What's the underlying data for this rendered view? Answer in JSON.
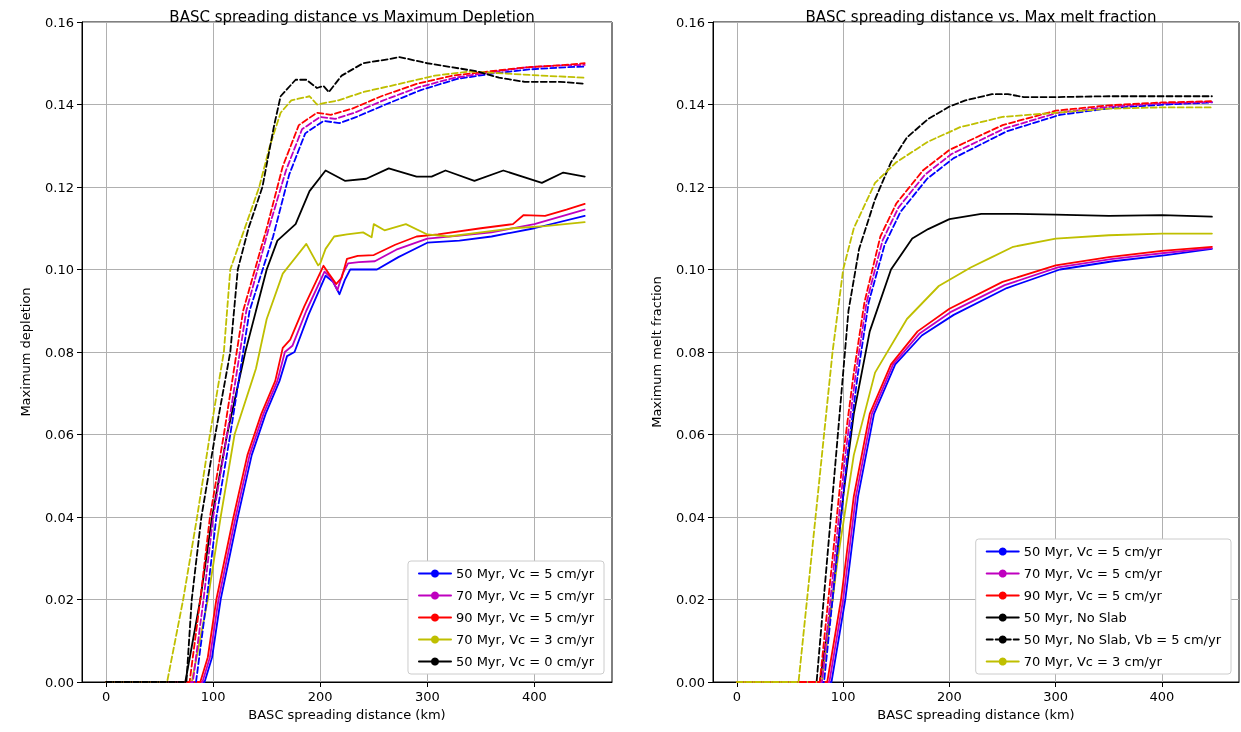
{
  "chart_data": [
    {
      "type": "line",
      "title": "BASC spreading distance vs Maximum Depletion",
      "xlabel": "BASC spreading distance (km)",
      "ylabel": "Maximum depletion",
      "xlim": [
        -22.5,
        472.5
      ],
      "xticks": [
        0,
        100,
        200,
        300,
        400
      ],
      "ylim": [
        0,
        0.16
      ],
      "yticks": [
        {
          "value": 0,
          "label": "0.00"
        },
        {
          "value": 0.02,
          "label": "0.02"
        },
        {
          "value": 0.04,
          "label": "0.04"
        },
        {
          "value": 0.06,
          "label": "0.06"
        },
        {
          "value": 0.08,
          "label": "0.08"
        },
        {
          "value": 0.1,
          "label": "0.10"
        },
        {
          "value": 0.12,
          "label": "0.12"
        },
        {
          "value": 0.14,
          "label": "0.14"
        },
        {
          "value": 0.16,
          "label": "0.16"
        }
      ],
      "grid": true,
      "legend": "bottom right",
      "marker": "none",
      "series": [
        {
          "name": "50 Myr, Vc = 5 cm/yr",
          "color": "#0000ff",
          "line_style": "solid",
          "x": [
            0,
            92,
            99,
            107,
            123,
            136,
            149,
            162,
            169,
            176,
            189,
            205,
            212,
            218,
            223,
            228,
            238,
            253,
            273,
            300,
            330,
            360,
            400,
            447
          ],
          "values": [
            0,
            0,
            0.006,
            0.02,
            0.04,
            0.055,
            0.065,
            0.073,
            0.079,
            0.08,
            0.089,
            0.0985,
            0.097,
            0.094,
            0.0975,
            0.1,
            0.1,
            0.1,
            0.103,
            0.1065,
            0.107,
            0.108,
            0.11,
            0.113
          ]
        },
        {
          "name": "70 Myr, Vc = 5 cm/yr",
          "color": "#bf00bf",
          "line_style": "solid",
          "x": [
            0,
            90,
            97,
            105,
            121,
            134,
            147,
            160,
            167,
            174,
            187,
            204,
            210,
            216,
            221,
            226,
            236,
            251,
            271,
            300,
            330,
            360,
            400,
            447
          ],
          "values": [
            0,
            0,
            0.006,
            0.02,
            0.04,
            0.055,
            0.065,
            0.073,
            0.08,
            0.0815,
            0.09,
            0.0995,
            0.098,
            0.095,
            0.099,
            0.1015,
            0.1018,
            0.102,
            0.1048,
            0.1075,
            0.1082,
            0.109,
            0.111,
            0.1145
          ]
        },
        {
          "name": "90 Myr, Vc = 5 cm/yr",
          "color": "#ff0000",
          "line_style": "solid",
          "x": [
            0,
            88,
            95,
            103,
            119,
            132,
            145,
            158,
            165,
            172,
            185,
            203,
            208,
            215,
            220,
            225,
            235,
            250,
            270,
            290,
            310,
            350,
            380,
            390,
            410,
            430,
            447
          ],
          "values": [
            0,
            0,
            0.006,
            0.02,
            0.04,
            0.055,
            0.065,
            0.073,
            0.081,
            0.083,
            0.091,
            0.1009,
            0.099,
            0.0965,
            0.098,
            0.1026,
            0.1033,
            0.1035,
            0.106,
            0.108,
            0.1085,
            0.11,
            0.111,
            0.1132,
            0.113,
            0.1145,
            0.1159
          ]
        },
        {
          "name": "70 Myr, Vc = 3 cm/yr",
          "color": "#bfbf00",
          "line_style": "solid",
          "x": [
            0,
            80,
            95,
            107,
            120,
            140,
            150,
            165,
            187,
            198,
            200,
            205,
            213,
            225,
            240,
            248,
            250,
            260,
            280,
            300,
            320,
            350,
            380,
            410,
            447
          ],
          "values": [
            0,
            0,
            0.02,
            0.04,
            0.06,
            0.076,
            0.088,
            0.099,
            0.1062,
            0.101,
            0.1015,
            0.105,
            0.108,
            0.1085,
            0.109,
            0.1078,
            0.111,
            0.1095,
            0.111,
            0.1085,
            0.108,
            0.109,
            0.11,
            0.1105,
            0.1115
          ]
        },
        {
          "name": "50 Myr, Vc = 0 cm/yr",
          "color": "#000000",
          "line_style": "solid",
          "x": [
            0,
            74,
            88,
            99,
            113,
            130,
            150,
            160,
            177,
            190,
            205,
            223,
            243,
            264,
            290,
            304,
            317,
            344,
            371,
            407,
            427,
            447
          ],
          "values": [
            0,
            0,
            0.02,
            0.04,
            0.06,
            0.08,
            0.1,
            0.107,
            0.111,
            0.119,
            0.124,
            0.1215,
            0.122,
            0.1245,
            0.1225,
            0.1225,
            0.124,
            0.1215,
            0.124,
            0.121,
            0.1235,
            0.1225
          ]
        },
        {
          "color": "#0000ff",
          "line_style": "dashed",
          "x": [
            0,
            84,
            94,
            103,
            116,
            128,
            134,
            156,
            171,
            186,
            203,
            218,
            234,
            261,
            294,
            328,
            361,
            395,
            428,
            447
          ],
          "values": [
            0,
            0,
            0.02,
            0.04,
            0.06,
            0.08,
            0.09,
            0.108,
            0.123,
            0.133,
            0.136,
            0.1355,
            0.137,
            0.14,
            0.1435,
            0.1462,
            0.1475,
            0.1485,
            0.149,
            0.1492
          ]
        },
        {
          "color": "#bf00bf",
          "line_style": "dashed",
          "x": [
            0,
            81,
            91,
            100,
            113,
            125,
            131,
            152,
            168,
            183,
            200,
            214,
            232,
            259,
            292,
            326,
            359,
            393,
            426,
            447
          ],
          "values": [
            0,
            0,
            0.02,
            0.04,
            0.06,
            0.08,
            0.09,
            0.11,
            0.124,
            0.134,
            0.137,
            0.1365,
            0.138,
            0.141,
            0.1442,
            0.1465,
            0.1478,
            0.149,
            0.1495,
            0.1496
          ]
        },
        {
          "color": "#ff0000",
          "line_style": "dashed",
          "x": [
            0,
            78,
            88,
            97,
            110,
            122,
            128,
            150,
            165,
            180,
            197,
            210,
            230,
            257,
            290,
            324,
            357,
            391,
            424,
            447
          ],
          "values": [
            0,
            0,
            0.02,
            0.04,
            0.06,
            0.08,
            0.09,
            0.11,
            0.125,
            0.135,
            0.138,
            0.1375,
            0.139,
            0.142,
            0.145,
            0.147,
            0.148,
            0.149,
            0.1495,
            0.15
          ]
        },
        {
          "color": "#bfbf00",
          "line_style": "dashed",
          "x": [
            0,
            57,
            72,
            85,
            97,
            110,
            116,
            143,
            153,
            163,
            173,
            190,
            197,
            217,
            240,
            274,
            307,
            340,
            374,
            407,
            447
          ],
          "values": [
            0,
            0,
            0.02,
            0.04,
            0.06,
            0.08,
            0.1,
            0.12,
            0.13,
            0.138,
            0.141,
            0.142,
            0.14,
            0.141,
            0.143,
            0.145,
            0.147,
            0.148,
            0.1475,
            0.147,
            0.1465
          ]
        },
        {
          "color": "#000000",
          "line_style": "dashed",
          "x": [
            0,
            75,
            80,
            89,
            102,
            116,
            123,
            133,
            146,
            157,
            163,
            177,
            187,
            197,
            203,
            208,
            220,
            240,
            264,
            274,
            300,
            324,
            347,
            367,
            391,
            424,
            447
          ],
          "values": [
            0,
            0,
            0.02,
            0.04,
            0.06,
            0.08,
            0.1,
            0.11,
            0.12,
            0.135,
            0.142,
            0.146,
            0.146,
            0.144,
            0.1445,
            0.143,
            0.147,
            0.15,
            0.151,
            0.1515,
            0.15,
            0.149,
            0.148,
            0.1465,
            0.1455,
            0.1455,
            0.145
          ]
        }
      ]
    },
    {
      "type": "line",
      "title": "BASC spreading distance vs. Max melt fraction",
      "xlabel": "BASC spreading distance (km)",
      "ylabel": "Maximum melt fraction",
      "xlim": [
        -22.5,
        472.5
      ],
      "xticks": [
        0,
        100,
        200,
        300,
        400
      ],
      "ylim": [
        0,
        0.16
      ],
      "yticks": [
        {
          "value": 0,
          "label": "0.00"
        },
        {
          "value": 0.02,
          "label": "0.02"
        },
        {
          "value": 0.04,
          "label": "0.04"
        },
        {
          "value": 0.06,
          "label": "0.06"
        },
        {
          "value": 0.08,
          "label": "0.08"
        },
        {
          "value": 0.1,
          "label": "0.10"
        },
        {
          "value": 0.12,
          "label": "0.12"
        },
        {
          "value": 0.14,
          "label": "0.14"
        },
        {
          "value": 0.16,
          "label": "0.16"
        }
      ],
      "grid": true,
      "legend": "bottom right",
      "marker": "none",
      "series": [
        {
          "name": "50 Myr, Vc = 5 cm/yr",
          "color": "#0000ff",
          "line_style": "solid",
          "x": [
            0,
            89,
            102,
            114,
            129,
            149,
            174,
            204,
            254,
            304,
            354,
            404,
            447
          ],
          "values": [
            0,
            0,
            0.02,
            0.045,
            0.065,
            0.077,
            0.084,
            0.089,
            0.0955,
            0.1,
            0.102,
            0.1035,
            0.105
          ]
        },
        {
          "name": "70 Myr, Vc = 5 cm/yr",
          "color": "#bf00bf",
          "line_style": "solid",
          "x": [
            0,
            87,
            100,
            112,
            127,
            147,
            172,
            202,
            252,
            302,
            352,
            402,
            447
          ],
          "values": [
            0,
            0,
            0.02,
            0.045,
            0.065,
            0.077,
            0.0845,
            0.0898,
            0.0962,
            0.1005,
            0.1025,
            0.104,
            0.1052
          ]
        },
        {
          "name": "90 Myr, Vc = 5 cm/yr",
          "color": "#ff0000",
          "line_style": "solid",
          "x": [
            0,
            85,
            98,
            110,
            125,
            145,
            170,
            200,
            250,
            300,
            350,
            400,
            447
          ],
          "values": [
            0,
            0,
            0.02,
            0.045,
            0.065,
            0.077,
            0.085,
            0.0905,
            0.097,
            0.101,
            0.103,
            0.1045,
            0.1055
          ]
        },
        {
          "name": "50 Myr, No Slab",
          "color": "#000000",
          "line_style": "solid",
          "x": [
            0,
            78,
            90,
            100,
            110,
            125,
            145,
            165,
            180,
            200,
            230,
            260,
            300,
            350,
            400,
            447
          ],
          "values": [
            0,
            0,
            0.02,
            0.045,
            0.065,
            0.085,
            0.1,
            0.1075,
            0.1098,
            0.1122,
            0.1135,
            0.1135,
            0.1133,
            0.113,
            0.1132,
            0.1128
          ]
        },
        {
          "name": "50 Myr, No Slab, Vb = 5 cm/yr",
          "color": "#000000",
          "line_style": "dashed",
          "x": [
            0,
            75,
            85,
            95,
            105,
            115,
            130,
            145,
            160,
            180,
            200,
            215,
            240,
            255,
            270,
            300,
            350,
            400,
            447
          ],
          "values": [
            0,
            0,
            0.03,
            0.06,
            0.09,
            0.105,
            0.117,
            0.126,
            0.132,
            0.1365,
            0.1395,
            0.141,
            0.1425,
            0.1425,
            0.1418,
            0.1418,
            0.142,
            0.142,
            0.142
          ]
        },
        {
          "name": "70 Myr, Vc = 3 cm/yr",
          "color": "#bfbf00",
          "line_style": "solid",
          "x": [
            0,
            80,
            95,
            110,
            130,
            160,
            190,
            220,
            240,
            260,
            300,
            350,
            400,
            447
          ],
          "values": [
            0,
            0,
            0.03,
            0.055,
            0.075,
            0.088,
            0.096,
            0.1005,
            0.103,
            0.1055,
            0.1075,
            0.1083,
            0.1087,
            0.1087
          ]
        },
        {
          "color": "#0000ff",
          "line_style": "dashed",
          "x": [
            0,
            82,
            94,
            104,
            114,
            124,
            139,
            154,
            179,
            204,
            254,
            304,
            354,
            404,
            447
          ],
          "values": [
            0,
            0,
            0.03,
            0.055,
            0.075,
            0.092,
            0.106,
            0.114,
            0.122,
            0.127,
            0.1335,
            0.1375,
            0.1392,
            0.14,
            0.1405
          ]
        },
        {
          "color": "#bf00bf",
          "line_style": "dashed",
          "x": [
            0,
            80,
            92,
            102,
            112,
            122,
            137,
            152,
            177,
            202,
            252,
            302,
            352,
            402,
            447
          ],
          "values": [
            0,
            0,
            0.03,
            0.055,
            0.075,
            0.092,
            0.107,
            0.115,
            0.123,
            0.128,
            0.1342,
            0.138,
            0.1395,
            0.1403,
            0.1406
          ]
        },
        {
          "color": "#ff0000",
          "line_style": "dashed",
          "x": [
            0,
            78,
            90,
            100,
            110,
            120,
            135,
            150,
            175,
            200,
            250,
            300,
            350,
            400,
            447
          ],
          "values": [
            0,
            0,
            0.03,
            0.055,
            0.075,
            0.092,
            0.108,
            0.116,
            0.124,
            0.129,
            0.135,
            0.1385,
            0.1398,
            0.1405,
            0.1408
          ]
        },
        {
          "color": "#bfbf00",
          "line_style": "dashed",
          "x": [
            0,
            58,
            70,
            80,
            90,
            100,
            110,
            130,
            150,
            180,
            210,
            250,
            300,
            350,
            400,
            447
          ],
          "values": [
            0,
            0,
            0.03,
            0.055,
            0.08,
            0.1,
            0.11,
            0.121,
            0.126,
            0.131,
            0.1345,
            0.137,
            0.138,
            0.139,
            0.1393,
            0.1393
          ]
        }
      ]
    }
  ]
}
